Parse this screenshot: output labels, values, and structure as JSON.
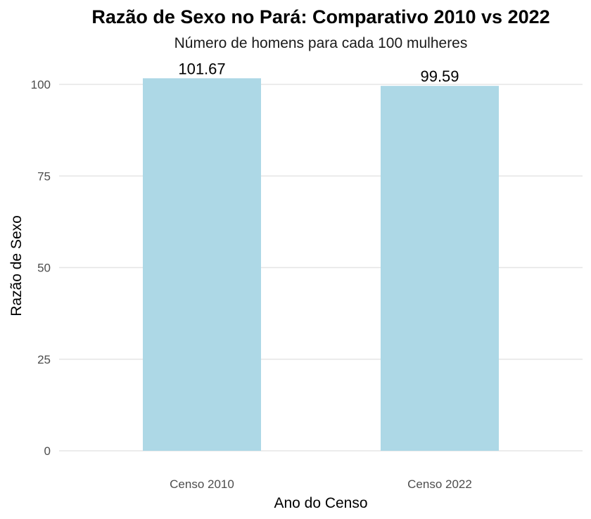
{
  "chart_data": {
    "type": "bar",
    "title": "Razão de Sexo no Pará: Comparativo 2010 vs 2022",
    "subtitle": "Número de homens para cada 100 mulheres",
    "xlabel": "Ano do Censo",
    "ylabel": "Razão de Sexo",
    "categories": [
      "Censo 2010",
      "Censo 2022"
    ],
    "values": [
      101.67,
      99.59
    ],
    "data_labels": [
      "101.67",
      "99.59"
    ],
    "ylim": [
      0,
      105
    ],
    "yticks": [
      0,
      25,
      50,
      75,
      100
    ],
    "ytick_labels": [
      "0",
      "25",
      "50",
      "75",
      "100"
    ],
    "bar_color": "#add8e6",
    "grid": true,
    "legend": "none"
  }
}
